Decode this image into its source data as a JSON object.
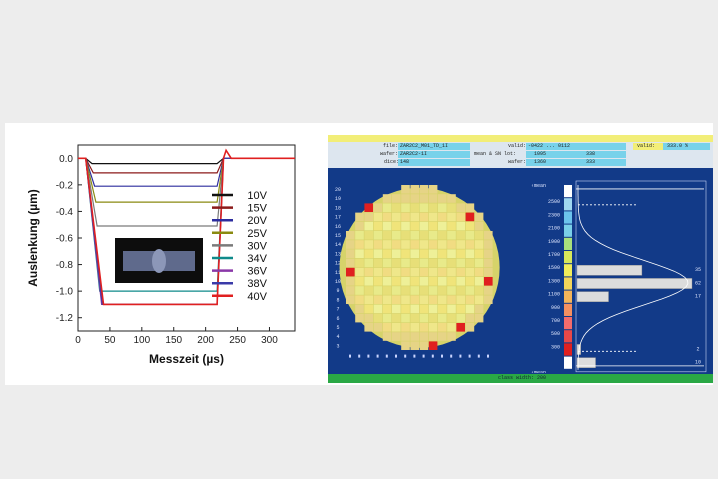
{
  "chart_data": [
    {
      "type": "line",
      "xlabel": "Messzeit (µs)",
      "ylabel": "Auslenkung (µm)",
      "xlim": [
        0,
        340
      ],
      "ylim": [
        -1.3,
        0.1
      ],
      "xticks": [
        "0",
        "50",
        "100",
        "150",
        "200",
        "250",
        "300"
      ],
      "yticks": [
        "0.0",
        "-0.2",
        "-0.4",
        "-0.6",
        "-0.8",
        "-1.0",
        "-1.2"
      ],
      "xtick_values": [
        0,
        50,
        100,
        150,
        200,
        250,
        300
      ],
      "ytick_values": [
        0.0,
        -0.2,
        -0.4,
        -0.6,
        -0.8,
        -1.0,
        -1.2
      ],
      "legend_position": "right",
      "grid": false,
      "series": [
        {
          "name": "10V",
          "color": "#111111",
          "plateau": -0.04,
          "fall_start": 12,
          "fall_end": 22
        },
        {
          "name": "15V",
          "color": "#8b1a1a",
          "plateau": -0.11,
          "fall_start": 12,
          "fall_end": 24
        },
        {
          "name": "20V",
          "color": "#2c2c9e",
          "plateau": -0.21,
          "fall_start": 12,
          "fall_end": 26
        },
        {
          "name": "25V",
          "color": "#8a8a10",
          "plateau": -0.33,
          "fall_start": 12,
          "fall_end": 28
        },
        {
          "name": "30V",
          "color": "#7a7a7a",
          "plateau": -0.51,
          "fall_start": 12,
          "fall_end": 30
        },
        {
          "name": "34V",
          "color": "#0f8a8a",
          "plateau": -1.0,
          "fall_start": 12,
          "fall_end": 34
        },
        {
          "name": "36V",
          "color": "#8a38a8",
          "plateau": -1.1,
          "fall_start": 12,
          "fall_end": 37
        },
        {
          "name": "38V",
          "color": "#3a3aa8",
          "plateau": -1.1,
          "fall_start": 12,
          "fall_end": 38
        },
        {
          "name": "40V",
          "color": "#e02020",
          "plateau": -1.1,
          "fall_start": 12,
          "fall_end": 40
        }
      ],
      "release_start": 218,
      "release_end": 228
    },
    {
      "type": "heatmap",
      "header": {
        "file_label": "file:",
        "file_value": "ZAR2C2_M01_TD_1I",
        "wafer_label": "wafer:",
        "wafer_value": "ZAR2C2-1I",
        "dice_label": "dice:",
        "dice_value": "148",
        "valid1_label": "valid:",
        "valid1_value": "-0422 ... 0112",
        "mean_label": "mean & SN lot:",
        "mean_value": "1095",
        "mean_value2": "338",
        "wafer2_label": "wafer:",
        "wafer2_value": "1360",
        "wafer2_value2": "333",
        "valid2_label": "valid:",
        "valid2_value": "333.0 %"
      },
      "row_labels": [
        "20",
        "19",
        "18",
        "17",
        "16",
        "15",
        "14",
        "13",
        "12",
        "11",
        "10",
        "9",
        "8",
        "7",
        "6",
        "5",
        "4",
        "3"
      ],
      "hist_levels": [
        "2500",
        "2300",
        "2100",
        "1900",
        "1700",
        "1500",
        "1300",
        "1100",
        "900",
        "700",
        "500",
        "300"
      ],
      "hist_top_label": "‹mean",
      "hist_bottom_label": "‹mean",
      "hist_counts": [
        0,
        0,
        0,
        0,
        0,
        35,
        62,
        17,
        0,
        0,
        0,
        2,
        10
      ],
      "hist_count_labels": [
        "35",
        "62",
        "17",
        "2",
        "10"
      ],
      "footer": "class width: 200",
      "colors": {
        "accent_red": "#e01f1f",
        "yellow": "#f2ec6a",
        "green_band": "#2aa845",
        "bg": "#123a88"
      }
    }
  ]
}
